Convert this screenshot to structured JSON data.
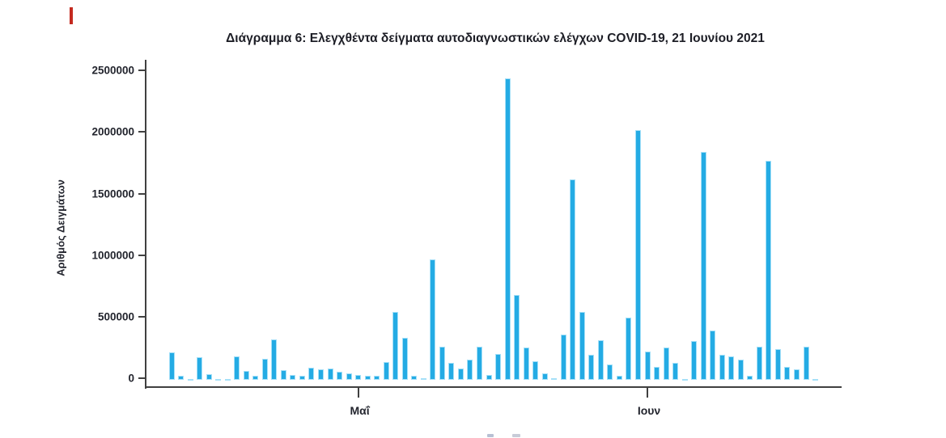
{
  "decorations": {
    "red_edge_mark_color": "#c42a20"
  },
  "chart_data": {
    "type": "bar",
    "title": "Διάγραμμα 6: Ελεγχθέντα δείγματα αυτοδιαγνωστικών ελέγχων COVID-19, 21 Ιουνίου 2021",
    "ylabel": "Αριθμός Δειγμάτων",
    "xlabel": "",
    "ylim": [
      0,
      2500000
    ],
    "grid": false,
    "legend": null,
    "bar_color": "#24abe4",
    "bar_edge_color": "#a5e0f8",
    "y_ticks": [
      0,
      500000,
      1000000,
      1500000,
      2000000,
      2500000
    ],
    "y_tick_labels": [
      "0",
      "500000",
      "1000000",
      "1500000",
      "2000000",
      "2500000"
    ],
    "x_ticks": [
      {
        "label": "Μαΐ",
        "bar_index": 20
      },
      {
        "label": "Ιουν",
        "bar_index": 51
      }
    ],
    "x_description": "daily samples, one bar per day",
    "values": [
      222000,
      30000,
      8000,
      184000,
      48000,
      3000,
      2000,
      189000,
      70000,
      31000,
      173000,
      327000,
      81000,
      41000,
      35000,
      97000,
      86000,
      92000,
      64000,
      53000,
      38000,
      31000,
      35000,
      145000,
      553000,
      344000,
      31000,
      15000,
      978000,
      272000,
      140000,
      92000,
      162000,
      272000,
      38000,
      213000,
      2450000,
      689000,
      261000,
      151000,
      53000,
      15000,
      370000,
      1632000,
      553000,
      202000,
      322000,
      123000,
      35000,
      509000,
      2033000,
      232000,
      107000,
      261000,
      140000,
      5000,
      316000,
      1855000,
      399000,
      206000,
      189000,
      166000,
      31000,
      268000,
      1780000,
      248000,
      105000,
      86000,
      272000,
      8000
    ]
  }
}
